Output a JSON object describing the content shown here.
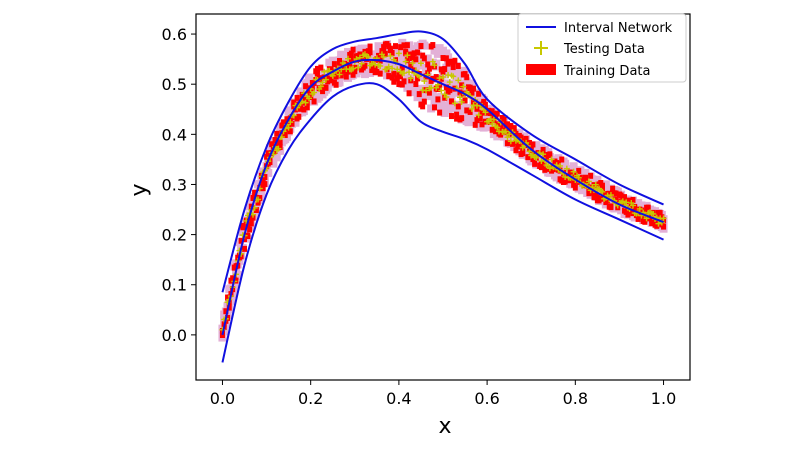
{
  "chart_data": {
    "type": "line",
    "xlabel": "x",
    "ylabel": "y",
    "xlim": [
      -0.06,
      1.06
    ],
    "ylim": [
      -0.09,
      0.64
    ],
    "xticks": [
      0.0,
      0.2,
      0.4,
      0.6,
      0.8,
      1.0
    ],
    "xtick_labels": [
      "0.0",
      "0.2",
      "0.4",
      "0.6",
      "0.8",
      "1.0"
    ],
    "yticks": [
      0.0,
      0.1,
      0.2,
      0.3,
      0.4,
      0.5,
      0.6
    ],
    "ytick_labels": [
      "0.0",
      "0.1",
      "0.2",
      "0.3",
      "0.4",
      "0.5",
      "0.6"
    ],
    "grid": false,
    "legend_position": "top-right",
    "legend": {
      "interval": "Interval Network",
      "testing": "Testing Data",
      "training": "Training Data"
    },
    "colors": {
      "interval": "#1010e0",
      "testing": "#c8c800",
      "training": "#ff0000",
      "training_edge": "#b0208c"
    },
    "series": [
      {
        "name": "Interval Network",
        "role": "upper",
        "x": [
          0.0,
          0.05,
          0.1,
          0.15,
          0.2,
          0.25,
          0.3,
          0.35,
          0.4,
          0.45,
          0.5,
          0.55,
          0.6,
          0.7,
          0.8,
          0.9,
          1.0
        ],
        "y": [
          0.085,
          0.25,
          0.375,
          0.465,
          0.535,
          0.57,
          0.585,
          0.592,
          0.6,
          0.605,
          0.59,
          0.54,
          0.47,
          0.4,
          0.35,
          0.3,
          0.26
        ]
      },
      {
        "name": "Interval Network",
        "role": "center",
        "x": [
          0.0,
          0.05,
          0.1,
          0.15,
          0.2,
          0.25,
          0.3,
          0.35,
          0.4,
          0.45,
          0.5,
          0.55,
          0.6,
          0.7,
          0.8,
          0.9,
          1.0
        ],
        "y": [
          0.0,
          0.2,
          0.34,
          0.43,
          0.495,
          0.525,
          0.545,
          0.548,
          0.54,
          0.52,
          0.5,
          0.48,
          0.45,
          0.37,
          0.31,
          0.26,
          0.225
        ]
      },
      {
        "name": "Interval Network",
        "role": "lower",
        "x": [
          0.0,
          0.05,
          0.1,
          0.15,
          0.2,
          0.25,
          0.3,
          0.35,
          0.4,
          0.45,
          0.5,
          0.55,
          0.6,
          0.7,
          0.8,
          0.9,
          1.0
        ],
        "y": [
          -0.055,
          0.14,
          0.28,
          0.37,
          0.43,
          0.475,
          0.497,
          0.5,
          0.47,
          0.425,
          0.405,
          0.39,
          0.37,
          0.32,
          0.27,
          0.23,
          0.19
        ]
      }
    ],
    "data_band": {
      "description_role": "Training/Testing data scatter band",
      "x": [
        0.0,
        0.05,
        0.1,
        0.15,
        0.2,
        0.25,
        0.3,
        0.35,
        0.4,
        0.45,
        0.5,
        0.55,
        0.6,
        0.7,
        0.8,
        0.9,
        1.0
      ],
      "upper": [
        0.03,
        0.235,
        0.36,
        0.45,
        0.52,
        0.555,
        0.57,
        0.578,
        0.585,
        0.585,
        0.575,
        0.525,
        0.46,
        0.385,
        0.335,
        0.285,
        0.24
      ],
      "lower": [
        -0.01,
        0.17,
        0.31,
        0.4,
        0.46,
        0.495,
        0.52,
        0.52,
        0.5,
        0.455,
        0.44,
        0.425,
        0.41,
        0.345,
        0.29,
        0.245,
        0.21
      ]
    }
  }
}
